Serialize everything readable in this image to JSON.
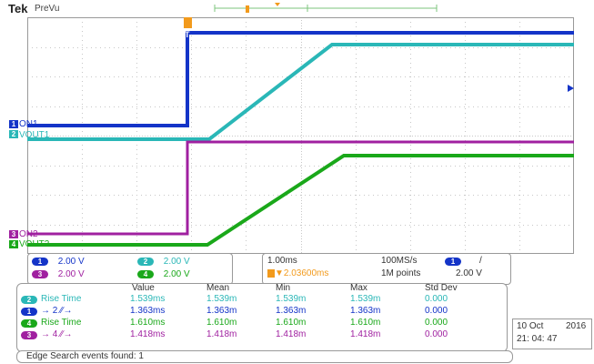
{
  "header": {
    "brand": "Tek",
    "mode": "PreVu"
  },
  "markers": {
    "trigger_marker": "T",
    "ch1": "ON1",
    "ch2": "VOUT1",
    "ch3": "ON2",
    "ch4": "VOUT2"
  },
  "channel_numbers": {
    "c1": "1",
    "c2": "2",
    "c3": "3",
    "c4": "4"
  },
  "colors": {
    "ch1": "#1434c8",
    "ch2": "#2ab7b7",
    "ch3": "#a020a0",
    "ch4": "#1aa81a",
    "grid": "#c7c7c7"
  },
  "scale": {
    "ch1": "2.00 V",
    "ch2": "2.00 V",
    "ch3": "2.00 V",
    "ch4": "2.00 V"
  },
  "timebase": {
    "time_div": "1.00ms",
    "sample_rate": "100MS/s",
    "trigger_pos": "▼2.03600ms",
    "record_length": "1M points",
    "trigger_level": "2.00 V",
    "trigger_slope_icon": "/"
  },
  "measurements": {
    "headers": [
      "Value",
      "Mean",
      "Min",
      "Max",
      "Std Dev"
    ],
    "rows": [
      {
        "label": "Rise Time",
        "src": "2",
        "value": "1.539ms",
        "mean": "1.539m",
        "min": "1.539m",
        "max": "1.539m",
        "std": "0.000",
        "color": "#2ab7b7"
      },
      {
        "label": "→ 2 ∕∕→",
        "src": "1",
        "value": "1.363ms",
        "mean": "1.363m",
        "min": "1.363m",
        "max": "1.363m",
        "std": "0.000",
        "color": "#1434c8"
      },
      {
        "label": "Rise Time",
        "src": "4",
        "value": "1.610ms",
        "mean": "1.610m",
        "min": "1.610m",
        "max": "1.610m",
        "std": "0.000",
        "color": "#1aa81a"
      },
      {
        "label": "→ 4 ∕∕→",
        "src": "3",
        "value": "1.418ms",
        "mean": "1.418m",
        "min": "1.418m",
        "max": "1.418m",
        "std": "0.000",
        "color": "#a020a0"
      }
    ]
  },
  "status": {
    "message": "Edge Search events found: 1"
  },
  "datetime": {
    "date_day": "10 Oct",
    "year": "2016",
    "time": "21: 04: 47"
  }
}
